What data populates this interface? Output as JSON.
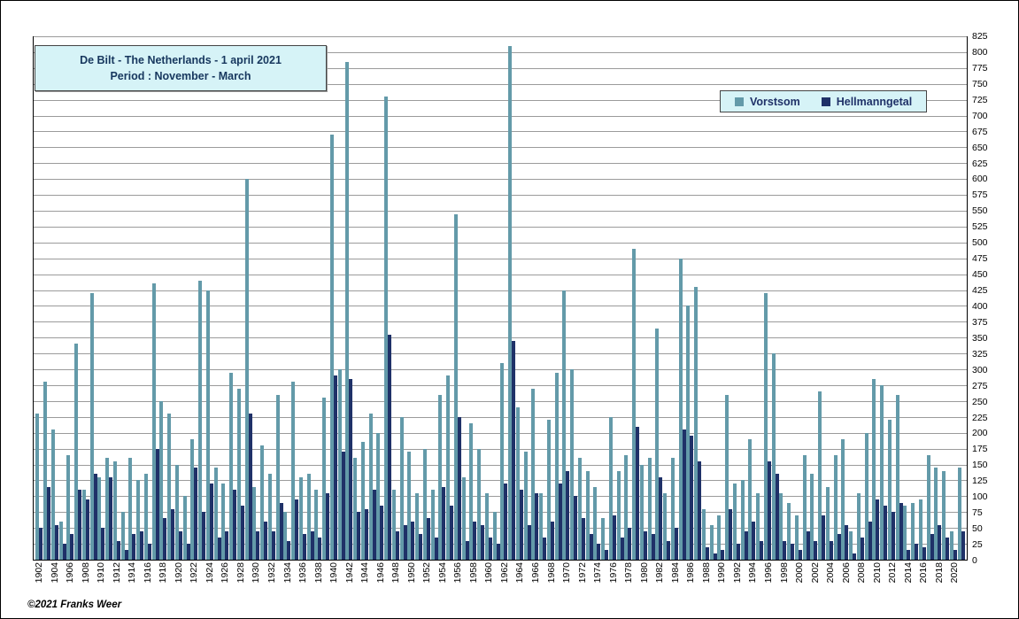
{
  "header": {
    "title_line1": "De Bilt - The Netherlands   -   1 april 2021",
    "title_line2": "Period : November - March"
  },
  "legend": {
    "items": [
      {
        "label": "Vorstsom",
        "color": "#639aa9"
      },
      {
        "label": "Hellmanngetal",
        "color": "#1f3168"
      }
    ]
  },
  "footer": {
    "copyright": "©2021 Franks Weer"
  },
  "colors": {
    "vorstsom": "#639aa9",
    "hellmanngetal": "#1f3168",
    "box_fill": "#d6f3f7",
    "gridline": "#9b9b9b",
    "title_text": "#17375e"
  },
  "chart_data": {
    "type": "bar",
    "title": "De Bilt - The Netherlands - 1 april 2021",
    "subtitle": "Period : November - March",
    "xlabel": "",
    "ylabel": "",
    "ylim": [
      0,
      825
    ],
    "y_tick_step": 25,
    "y_axis_side": "right",
    "x_tick_every": 2,
    "grid": true,
    "legend_position": "top-right",
    "x": [
      1902,
      1903,
      1904,
      1905,
      1906,
      1907,
      1908,
      1909,
      1910,
      1911,
      1912,
      1913,
      1914,
      1915,
      1916,
      1917,
      1918,
      1919,
      1920,
      1921,
      1922,
      1923,
      1924,
      1925,
      1926,
      1927,
      1928,
      1929,
      1930,
      1931,
      1932,
      1933,
      1934,
      1935,
      1936,
      1937,
      1938,
      1939,
      1940,
      1941,
      1942,
      1943,
      1944,
      1945,
      1946,
      1947,
      1948,
      1949,
      1950,
      1951,
      1952,
      1953,
      1954,
      1955,
      1956,
      1957,
      1958,
      1959,
      1960,
      1961,
      1962,
      1963,
      1964,
      1965,
      1966,
      1967,
      1968,
      1969,
      1970,
      1971,
      1972,
      1973,
      1974,
      1975,
      1976,
      1977,
      1978,
      1979,
      1980,
      1981,
      1982,
      1983,
      1984,
      1985,
      1986,
      1987,
      1988,
      1989,
      1990,
      1991,
      1992,
      1993,
      1994,
      1995,
      1996,
      1997,
      1998,
      1999,
      2000,
      2001,
      2002,
      2003,
      2004,
      2005,
      2006,
      2007,
      2008,
      2009,
      2010,
      2011,
      2012,
      2013,
      2014,
      2015,
      2016,
      2017,
      2018,
      2019,
      2020,
      2021
    ],
    "series": [
      {
        "name": "Vorstsom",
        "color": "#639aa9",
        "values": [
          230,
          280,
          205,
          60,
          165,
          340,
          110,
          420,
          130,
          160,
          155,
          75,
          160,
          125,
          135,
          435,
          250,
          230,
          150,
          100,
          190,
          440,
          425,
          145,
          120,
          295,
          270,
          600,
          115,
          180,
          135,
          260,
          75,
          280,
          130,
          135,
          110,
          255,
          670,
          300,
          785,
          160,
          185,
          230,
          200,
          730,
          110,
          225,
          170,
          105,
          175,
          110,
          260,
          290,
          545,
          130,
          215,
          175,
          105,
          75,
          310,
          810,
          240,
          170,
          270,
          105,
          220,
          295,
          425,
          300,
          160,
          140,
          115,
          65,
          225,
          140,
          165,
          490,
          150,
          160,
          365,
          105,
          160,
          475,
          400,
          430,
          80,
          55,
          70,
          260,
          120,
          125,
          190,
          105,
          420,
          325,
          105,
          90,
          70,
          165,
          135,
          265,
          115,
          165,
          190,
          45,
          105,
          200,
          285,
          275,
          220,
          260,
          85,
          90,
          95,
          165,
          145,
          140,
          45,
          145
        ]
      },
      {
        "name": "Hellmanngetal",
        "color": "#1f3168",
        "values": [
          50,
          115,
          55,
          25,
          40,
          110,
          95,
          135,
          50,
          130,
          30,
          15,
          40,
          45,
          25,
          175,
          65,
          80,
          45,
          25,
          145,
          75,
          120,
          35,
          45,
          110,
          85,
          230,
          45,
          60,
          45,
          90,
          30,
          95,
          40,
          45,
          35,
          105,
          290,
          170,
          285,
          75,
          80,
          110,
          85,
          355,
          45,
          55,
          60,
          40,
          65,
          35,
          115,
          85,
          225,
          30,
          60,
          55,
          35,
          25,
          120,
          345,
          110,
          55,
          105,
          35,
          60,
          120,
          140,
          100,
          65,
          40,
          25,
          15,
          70,
          35,
          50,
          210,
          45,
          40,
          130,
          30,
          50,
          205,
          195,
          155,
          20,
          10,
          15,
          80,
          25,
          45,
          60,
          30,
          155,
          135,
          30,
          25,
          15,
          45,
          30,
          70,
          30,
          40,
          55,
          10,
          35,
          60,
          95,
          85,
          75,
          90,
          15,
          25,
          20,
          40,
          55,
          35,
          15,
          45
        ]
      }
    ]
  }
}
